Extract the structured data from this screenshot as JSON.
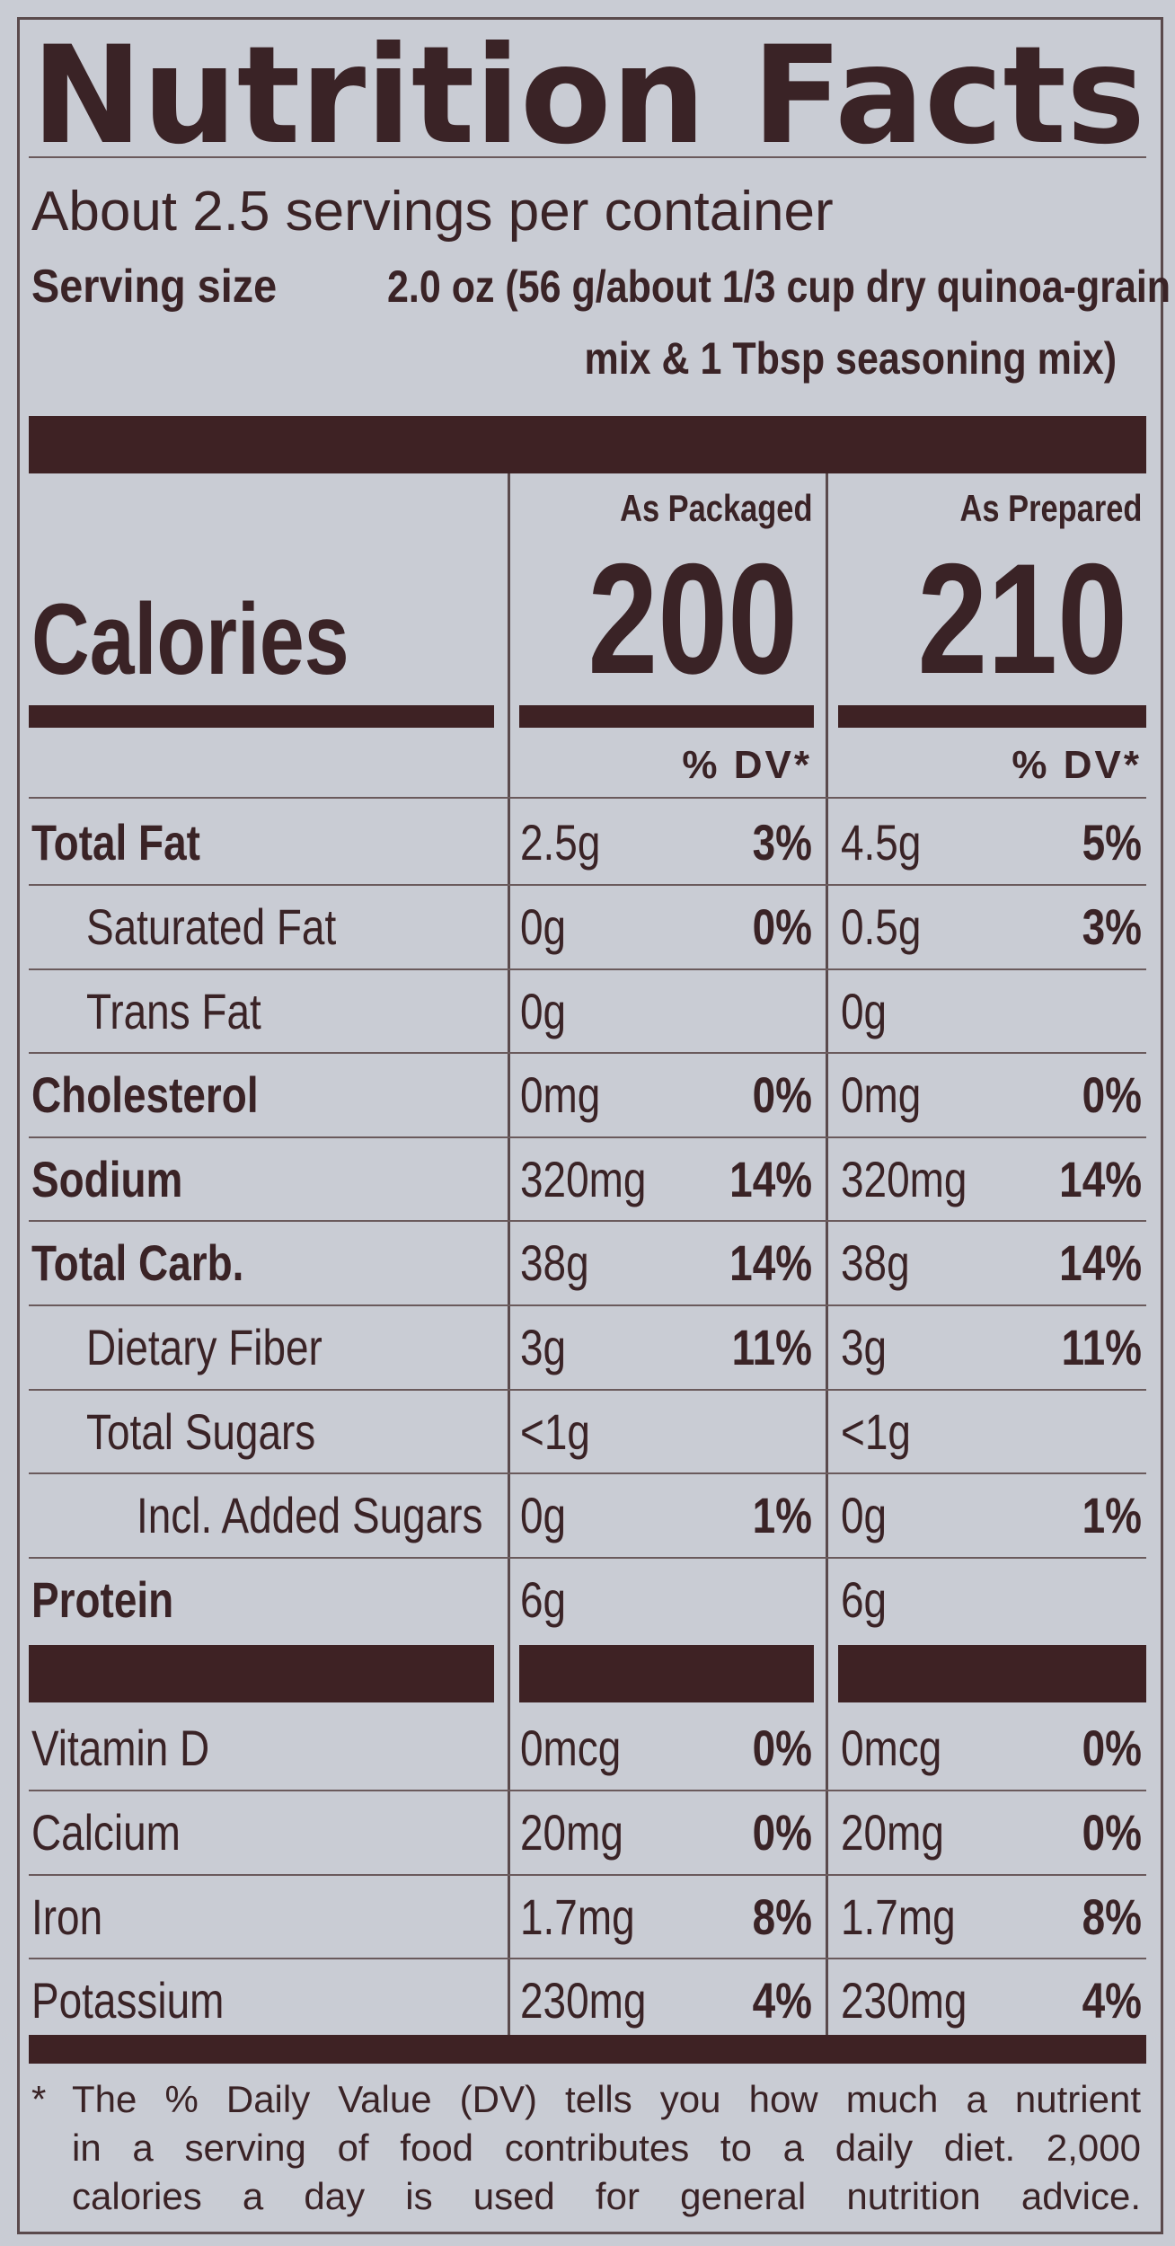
{
  "header": {
    "title": "Nutrition Facts",
    "servings": "About 2.5 servings per container",
    "serving_size_label": "Serving size",
    "serving_size_lines": [
      "2.0 oz (56 g/about 1/3 cup dry quinoa-grain",
      "mix & 1 Tbsp seasoning mix)"
    ]
  },
  "columns": [
    "As Packaged",
    "As Prepared"
  ],
  "calories_label": "Calories",
  "calories": [
    "200",
    "210"
  ],
  "dv_header": "% DV*",
  "rows": [
    {
      "name": "Total Fat",
      "values": [
        "2.5g",
        "3%",
        "4.5g",
        "5%"
      ],
      "bold": true,
      "indent": 0
    },
    {
      "name": "Saturated Fat",
      "values": [
        "0g",
        "0%",
        "0.5g",
        "3%"
      ],
      "bold": false,
      "indent": 1
    },
    {
      "name": "Trans Fat",
      "values": [
        "0g",
        null,
        "0g",
        null
      ],
      "bold": false,
      "indent": 1
    },
    {
      "name": "Cholesterol",
      "values": [
        "0mg",
        "0%",
        "0mg",
        "0%"
      ],
      "bold": true,
      "indent": 0
    },
    {
      "name": "Sodium",
      "values": [
        "320mg",
        "14%",
        "320mg",
        "14%"
      ],
      "bold": true,
      "indent": 0
    },
    {
      "name": "Total Carb.",
      "values": [
        "38g",
        "14%",
        "38g",
        "14%"
      ],
      "bold": true,
      "indent": 0
    },
    {
      "name": "Dietary Fiber",
      "values": [
        "3g",
        "11%",
        "3g",
        "11%"
      ],
      "bold": false,
      "indent": 1
    },
    {
      "name": "Total Sugars",
      "values": [
        "<1g",
        null,
        "<1g",
        null
      ],
      "bold": false,
      "indent": 1
    },
    {
      "name": "Incl. Added Sugars",
      "values": [
        "0g",
        "1%",
        "0g",
        "1%"
      ],
      "bold": false,
      "indent": 2
    },
    {
      "name": "Protein",
      "values": [
        "6g",
        null,
        "6g",
        null
      ],
      "bold": true,
      "indent": 0
    }
  ],
  "vitamins": [
    {
      "name": "Vitamin D",
      "values": [
        "0mcg",
        "0%",
        "0mcg",
        "0%"
      ]
    },
    {
      "name": "Calcium",
      "values": [
        "20mg",
        "0%",
        "20mg",
        "0%"
      ]
    },
    {
      "name": "Iron",
      "values": [
        "1.7mg",
        "8%",
        "1.7mg",
        "8%"
      ]
    },
    {
      "name": "Potassium",
      "values": [
        "230mg",
        "4%",
        "230mg",
        "4%"
      ]
    }
  ],
  "footnote": [
    "*",
    "The % Daily Value (DV) tells you how much a nutrient",
    "in a serving of food contributes to a daily diet. 2,000",
    "calories a day is used for general nutrition advice."
  ]
}
